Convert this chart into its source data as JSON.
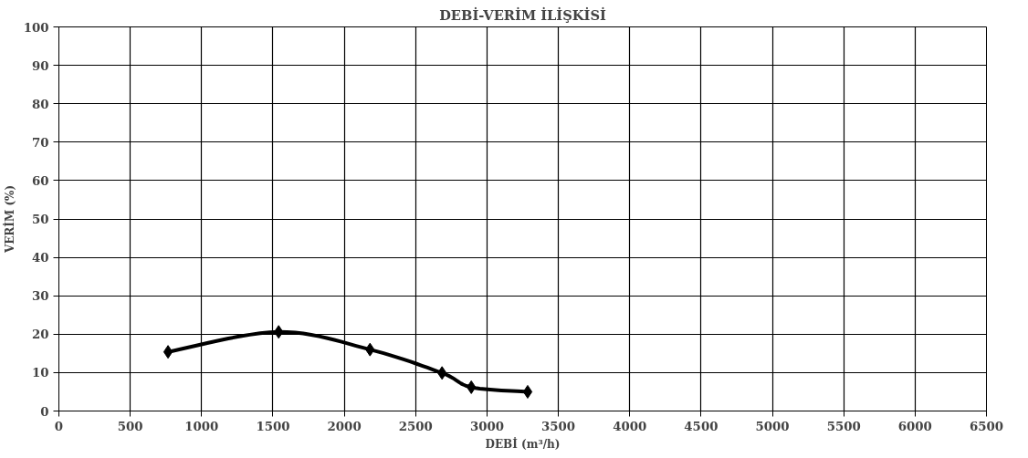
{
  "chart_data": {
    "type": "line",
    "title": "DEBİ-VERİM İLİŞKİSİ",
    "xlabel": "DEBİ (m³/h)",
    "ylabel": "VERİM (%)",
    "x": [
      765,
      1540,
      2180,
      2685,
      2890,
      3285
    ],
    "series": [
      {
        "color": "#000000",
        "values": [
          15.4,
          20.6,
          16,
          9.9,
          6.2,
          5
        ]
      }
    ],
    "xlim": [
      0,
      6500
    ],
    "xticks": [
      0,
      500,
      1000,
      1500,
      2000,
      2500,
      3000,
      3500,
      4000,
      4500,
      5000,
      5500,
      6000,
      6500
    ],
    "ylim": [
      0,
      100
    ],
    "yticks": [
      0,
      10,
      20,
      30,
      40,
      50,
      60,
      70,
      80,
      90,
      100
    ],
    "grid": true,
    "marker": "diamond",
    "line_style": "solid"
  }
}
